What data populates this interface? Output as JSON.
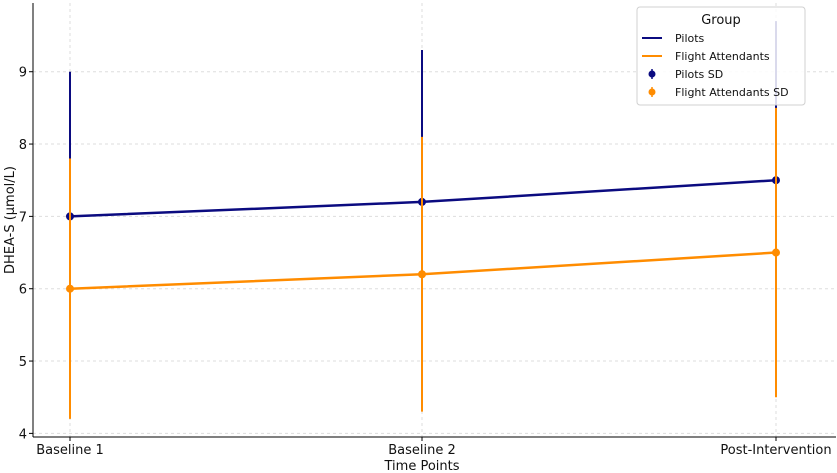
{
  "chart_data": {
    "type": "line",
    "title": "",
    "xlabel": "Time Points",
    "ylabel": "DHEA-S (μmol/L)",
    "categories": [
      "Baseline 1",
      "Baseline 2",
      "Post-Intervention"
    ],
    "ylim": [
      3.95,
      9.95
    ],
    "yticks": [
      4,
      5,
      6,
      7,
      8,
      9
    ],
    "grid": true,
    "legend": {
      "title": "Group",
      "placement": "top-right",
      "entries": [
        "Pilots",
        "Flight Attendants",
        "Pilots SD",
        "Flight Attendants SD"
      ]
    },
    "series": [
      {
        "name": "Pilots",
        "sd_label": "Pilots SD",
        "color": "#0b0b80",
        "values": [
          7.0,
          7.2,
          7.5
        ],
        "sd": [
          2.0,
          2.1,
          2.2
        ]
      },
      {
        "name": "Flight Attendants",
        "sd_label": "Flight Attendants SD",
        "color": "#ff8c00",
        "values": [
          6.0,
          6.2,
          6.5
        ],
        "sd": [
          1.8,
          1.9,
          2.0
        ]
      }
    ]
  }
}
